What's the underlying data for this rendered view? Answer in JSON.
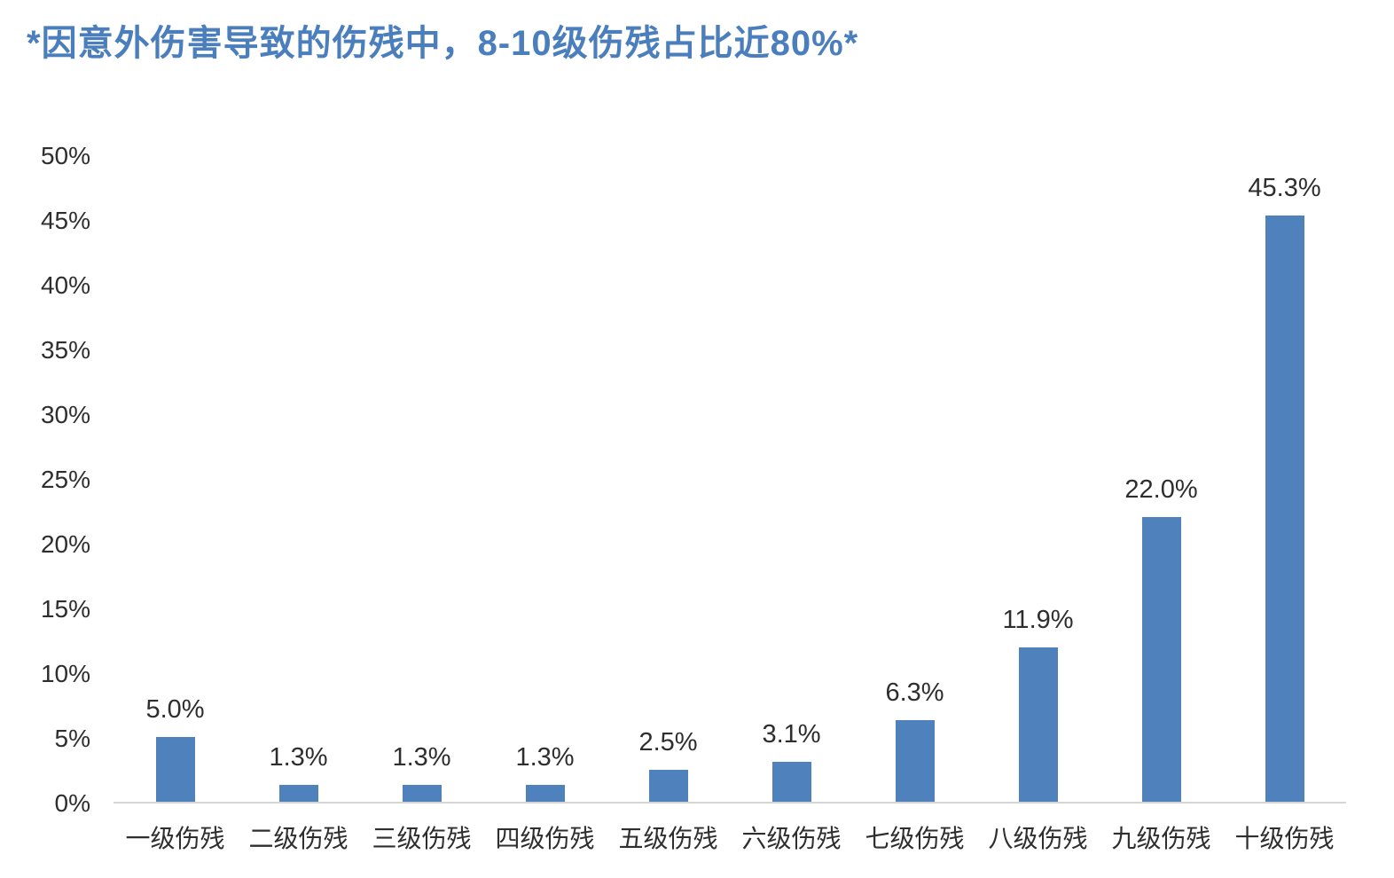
{
  "title": "*因意外伤害导致的伤残中，8-10级伤残占比近80%*",
  "colors": {
    "title": "#4a7ebc",
    "bar": "#4f81bd",
    "axis_line": "#d6d6d6",
    "tick_text": "#2e2e2e",
    "label_text": "#2e2e2e"
  },
  "chart_data": {
    "type": "bar",
    "title": "*因意外伤害导致的伤残中，8-10级伤残占比近80%*",
    "categories": [
      "一级伤残",
      "二级伤残",
      "三级伤残",
      "四级伤残",
      "五级伤残",
      "六级伤残",
      "七级伤残",
      "八级伤残",
      "九级伤残",
      "十级伤残"
    ],
    "values": [
      5.0,
      1.3,
      1.3,
      1.3,
      2.5,
      3.1,
      6.3,
      11.9,
      22.0,
      45.3
    ],
    "data_labels": [
      "5.0%",
      "1.3%",
      "1.3%",
      "1.3%",
      "2.5%",
      "3.1%",
      "6.3%",
      "11.9%",
      "22.0%",
      "45.3%"
    ],
    "xlabel": "",
    "ylabel": "",
    "ylim": [
      0,
      50
    ],
    "ytick_step": 5,
    "ytick_labels": [
      "0%",
      "5%",
      "10%",
      "15%",
      "20%",
      "25%",
      "30%",
      "35%",
      "40%",
      "45%",
      "50%"
    ],
    "grid": false,
    "legend": false
  }
}
